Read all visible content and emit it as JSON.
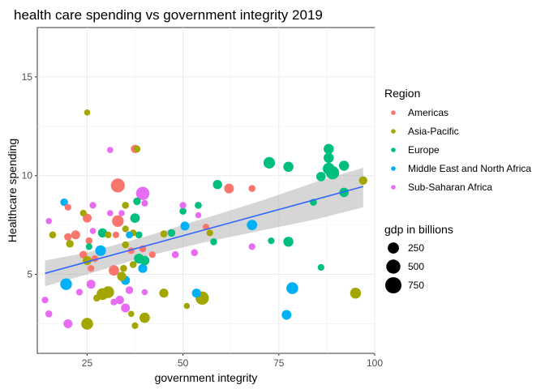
{
  "chart_data": {
    "type": "scatter",
    "title": "health care spending vs government integrity 2019",
    "xlabel": "government integrity",
    "ylabel": "Healthcare spending",
    "xlim": [
      12,
      100
    ],
    "ylim": [
      1,
      17.5
    ],
    "xticks": [
      25,
      50,
      75,
      100
    ],
    "yticks": [
      5,
      10,
      15
    ],
    "grid": true,
    "legend_position": "right",
    "color_legend": {
      "title": "Region",
      "entries": [
        {
          "name": "Americas",
          "color": "#F8766D"
        },
        {
          "name": "Asia-Pacific",
          "color": "#A3A500"
        },
        {
          "name": "Europe",
          "color": "#00BF7D"
        },
        {
          "name": "Middle East and North Africa",
          "color": "#00B0F6"
        },
        {
          "name": "Sub-Saharan Africa",
          "color": "#E76BF3"
        }
      ]
    },
    "size_legend": {
      "title": "gdp in billions",
      "entries": [
        {
          "label": "250",
          "value": 250
        },
        {
          "label": "500",
          "value": 500
        },
        {
          "label": "750",
          "value": 750
        }
      ]
    },
    "trend_line": {
      "x": [
        14,
        97
      ],
      "y": [
        5.05,
        9.45
      ]
    },
    "confidence_band": {
      "x": [
        14,
        25,
        40,
        55,
        70,
        85,
        97
      ],
      "upper": [
        5.7,
        6.1,
        6.9,
        7.8,
        8.7,
        9.7,
        10.4
      ],
      "lower": [
        4.4,
        5.0,
        5.9,
        6.6,
        7.2,
        7.8,
        8.4
      ]
    },
    "points": [
      {
        "x": 25,
        "y": 13.2,
        "region": "Asia-Pacific",
        "gdp": 20
      },
      {
        "x": 37.5,
        "y": 11.35,
        "region": "Americas",
        "gdp": 90
      },
      {
        "x": 38,
        "y": 11.35,
        "region": "Asia-Pacific",
        "gdp": 40
      },
      {
        "x": 31,
        "y": 11.3,
        "region": "Sub-Saharan Africa",
        "gdp": 20
      },
      {
        "x": 33,
        "y": 9.5,
        "region": "Americas",
        "gdp": 480
      },
      {
        "x": 39.5,
        "y": 9.1,
        "region": "Sub-Saharan Africa",
        "gdp": 430
      },
      {
        "x": 62,
        "y": 9.35,
        "region": "Americas",
        "gdp": 160
      },
      {
        "x": 68,
        "y": 9.35,
        "region": "Americas",
        "gdp": 40
      },
      {
        "x": 59,
        "y": 9.55,
        "region": "Europe",
        "gdp": 130
      },
      {
        "x": 72.5,
        "y": 10.65,
        "region": "Europe",
        "gdp": 270
      },
      {
        "x": 77.5,
        "y": 10.45,
        "region": "Europe",
        "gdp": 190
      },
      {
        "x": 86,
        "y": 9.95,
        "region": "Europe",
        "gdp": 140
      },
      {
        "x": 88,
        "y": 10.35,
        "region": "Europe",
        "gdp": 300
      },
      {
        "x": 88,
        "y": 10.9,
        "region": "Europe",
        "gdp": 190
      },
      {
        "x": 88,
        "y": 11.35,
        "region": "Europe",
        "gdp": 190
      },
      {
        "x": 89,
        "y": 10.15,
        "region": "Europe",
        "gdp": 420
      },
      {
        "x": 92,
        "y": 10.5,
        "region": "Europe",
        "gdp": 180
      },
      {
        "x": 97,
        "y": 9.75,
        "region": "Asia-Pacific",
        "gdp": 90
      },
      {
        "x": 92,
        "y": 9.15,
        "region": "Europe",
        "gdp": 140
      },
      {
        "x": 84,
        "y": 8.65,
        "region": "Europe",
        "gdp": 40
      },
      {
        "x": 77.5,
        "y": 6.65,
        "region": "Europe",
        "gdp": 180
      },
      {
        "x": 73,
        "y": 6.7,
        "region": "Europe",
        "gdp": 30
      },
      {
        "x": 68,
        "y": 7.5,
        "region": "Middle East and North Africa",
        "gdp": 200
      },
      {
        "x": 68,
        "y": 6.4,
        "region": "Sub-Saharan Africa",
        "gdp": 30
      },
      {
        "x": 86,
        "y": 5.35,
        "region": "Europe",
        "gdp": 30
      },
      {
        "x": 78.5,
        "y": 4.3,
        "region": "Middle East and North Africa",
        "gdp": 300
      },
      {
        "x": 77,
        "y": 2.95,
        "region": "Middle East and North Africa",
        "gdp": 160
      },
      {
        "x": 95,
        "y": 4.05,
        "region": "Asia-Pacific",
        "gdp": 230
      },
      {
        "x": 55,
        "y": 3.8,
        "region": "Asia-Pacific",
        "gdp": 420
      },
      {
        "x": 53.5,
        "y": 4.05,
        "region": "Middle East and North Africa",
        "gdp": 120
      },
      {
        "x": 51,
        "y": 3.4,
        "region": "Asia-Pacific",
        "gdp": 20
      },
      {
        "x": 45,
        "y": 4.05,
        "region": "Asia-Pacific",
        "gdp": 120
      },
      {
        "x": 40,
        "y": 2.8,
        "region": "Asia-Pacific",
        "gdp": 200
      },
      {
        "x": 37.5,
        "y": 2.4,
        "region": "Asia-Pacific",
        "gdp": 30
      },
      {
        "x": 25,
        "y": 2.5,
        "region": "Asia-Pacific",
        "gdp": 300
      },
      {
        "x": 20,
        "y": 2.5,
        "region": "Sub-Saharan Africa",
        "gdp": 110
      },
      {
        "x": 15,
        "y": 3.0,
        "region": "Sub-Saharan Africa",
        "gdp": 40
      },
      {
        "x": 14,
        "y": 3.7,
        "region": "Sub-Saharan Africa",
        "gdp": 30
      },
      {
        "x": 19.5,
        "y": 4.5,
        "region": "Middle East and North Africa",
        "gdp": 280
      },
      {
        "x": 23,
        "y": 4.1,
        "region": "Sub-Saharan Africa",
        "gdp": 30
      },
      {
        "x": 26,
        "y": 4.5,
        "region": "Sub-Saharan Africa",
        "gdp": 110
      },
      {
        "x": 27.5,
        "y": 3.8,
        "region": "Asia-Pacific",
        "gdp": 40
      },
      {
        "x": 29,
        "y": 4.0,
        "region": "Asia-Pacific",
        "gdp": 300
      },
      {
        "x": 30.5,
        "y": 4.1,
        "region": "Asia-Pacific",
        "gdp": 280
      },
      {
        "x": 32,
        "y": 3.6,
        "region": "Sub-Saharan Africa",
        "gdp": 30
      },
      {
        "x": 33.5,
        "y": 3.7,
        "region": "Sub-Saharan Africa",
        "gdp": 100
      },
      {
        "x": 35,
        "y": 3.3,
        "region": "Sub-Saharan Africa",
        "gdp": 110
      },
      {
        "x": 36,
        "y": 4.2,
        "region": "Sub-Saharan Africa",
        "gdp": 60
      },
      {
        "x": 36.5,
        "y": 3.0,
        "region": "Asia-Pacific",
        "gdp": 20
      },
      {
        "x": 40,
        "y": 4.1,
        "region": "Sub-Saharan Africa",
        "gdp": 20
      },
      {
        "x": 35,
        "y": 4.7,
        "region": "Middle East and North Africa",
        "gdp": 120
      },
      {
        "x": 34,
        "y": 4.9,
        "region": "Asia-Pacific",
        "gdp": 120
      },
      {
        "x": 32,
        "y": 5.2,
        "region": "Americas",
        "gdp": 200
      },
      {
        "x": 34.5,
        "y": 5.3,
        "region": "Asia-Pacific",
        "gdp": 40
      },
      {
        "x": 37,
        "y": 5.5,
        "region": "Asia-Pacific",
        "gdp": 40
      },
      {
        "x": 39.5,
        "y": 5.3,
        "region": "Middle East and North Africa",
        "gdp": 120
      },
      {
        "x": 42,
        "y": 6.0,
        "region": "Americas",
        "gdp": 30
      },
      {
        "x": 38.5,
        "y": 5.8,
        "region": "Europe",
        "gdp": 170
      },
      {
        "x": 40,
        "y": 5.7,
        "region": "Europe",
        "gdp": 150
      },
      {
        "x": 39.5,
        "y": 6.3,
        "region": "Americas",
        "gdp": 40
      },
      {
        "x": 36.5,
        "y": 6.2,
        "region": "Americas",
        "gdp": 30
      },
      {
        "x": 35,
        "y": 6.5,
        "region": "Asia-Pacific",
        "gdp": 40
      },
      {
        "x": 35,
        "y": 7.3,
        "region": "Asia-Pacific",
        "gdp": 30
      },
      {
        "x": 37,
        "y": 7.1,
        "region": "Asia-Pacific",
        "gdp": 30
      },
      {
        "x": 38.5,
        "y": 7.0,
        "region": "Europe",
        "gdp": 40
      },
      {
        "x": 33,
        "y": 7.7,
        "region": "Americas",
        "gdp": 280
      },
      {
        "x": 34,
        "y": 8.1,
        "region": "Sub-Saharan Africa",
        "gdp": 20
      },
      {
        "x": 37.5,
        "y": 7.85,
        "region": "Europe",
        "gdp": 150
      },
      {
        "x": 38,
        "y": 8.7,
        "region": "Europe",
        "gdp": 60
      },
      {
        "x": 31,
        "y": 8.1,
        "region": "Sub-Saharan Africa",
        "gdp": 20
      },
      {
        "x": 26.5,
        "y": 8.5,
        "region": "Sub-Saharan Africa",
        "gdp": 30
      },
      {
        "x": 26.5,
        "y": 7.2,
        "region": "Sub-Saharan Africa",
        "gdp": 20
      },
      {
        "x": 25,
        "y": 7.85,
        "region": "Americas",
        "gdp": 110
      },
      {
        "x": 24,
        "y": 8.1,
        "region": "Asia-Pacific",
        "gdp": 30
      },
      {
        "x": 19,
        "y": 8.65,
        "region": "Middle East and North Africa",
        "gdp": 60
      },
      {
        "x": 20,
        "y": 8.4,
        "region": "Americas",
        "gdp": 30
      },
      {
        "x": 15,
        "y": 7.7,
        "region": "Sub-Saharan Africa",
        "gdp": 20
      },
      {
        "x": 16,
        "y": 7.0,
        "region": "Asia-Pacific",
        "gdp": 40
      },
      {
        "x": 20,
        "y": 6.9,
        "region": "Americas",
        "gdp": 60
      },
      {
        "x": 20.5,
        "y": 6.55,
        "region": "Asia-Pacific",
        "gdp": 60
      },
      {
        "x": 22,
        "y": 7.0,
        "region": "Americas",
        "gdp": 110
      },
      {
        "x": 25.5,
        "y": 6.7,
        "region": "Americas",
        "gdp": 40
      },
      {
        "x": 25.5,
        "y": 6.4,
        "region": "Europe",
        "gdp": 30
      },
      {
        "x": 24,
        "y": 6.0,
        "region": "Americas",
        "gdp": 60
      },
      {
        "x": 25,
        "y": 5.7,
        "region": "Asia-Pacific",
        "gdp": 110
      },
      {
        "x": 27,
        "y": 5.8,
        "region": "Americas",
        "gdp": 40
      },
      {
        "x": 26,
        "y": 5.3,
        "region": "Americas",
        "gdp": 30
      },
      {
        "x": 28.5,
        "y": 6.2,
        "region": "Middle East and North Africa",
        "gdp": 220
      },
      {
        "x": 29,
        "y": 7.1,
        "region": "Europe",
        "gdp": 130
      },
      {
        "x": 30.5,
        "y": 7.0,
        "region": "Asia-Pacific",
        "gdp": 30
      },
      {
        "x": 32.5,
        "y": 7.0,
        "region": "Americas",
        "gdp": 30
      },
      {
        "x": 36,
        "y": 7.0,
        "region": "Middle East and North Africa",
        "gdp": 40
      },
      {
        "x": 45,
        "y": 7.05,
        "region": "Asia-Pacific",
        "gdp": 40
      },
      {
        "x": 47,
        "y": 7.1,
        "region": "Europe",
        "gdp": 60
      },
      {
        "x": 48,
        "y": 6.0,
        "region": "Sub-Saharan Africa",
        "gdp": 40
      },
      {
        "x": 53,
        "y": 6.1,
        "region": "Sub-Saharan Africa",
        "gdp": 40
      },
      {
        "x": 50.5,
        "y": 7.45,
        "region": "Middle East and North Africa",
        "gdp": 110
      },
      {
        "x": 50,
        "y": 8.2,
        "region": "Europe",
        "gdp": 40
      },
      {
        "x": 50,
        "y": 8.5,
        "region": "Sub-Saharan Africa",
        "gdp": 30
      },
      {
        "x": 54,
        "y": 8.5,
        "region": "Europe",
        "gdp": 40
      },
      {
        "x": 54,
        "y": 8.0,
        "region": "Sub-Saharan Africa",
        "gdp": 20
      },
      {
        "x": 57,
        "y": 7.1,
        "region": "Asia-Pacific",
        "gdp": 30
      },
      {
        "x": 56,
        "y": 7.4,
        "region": "Americas",
        "gdp": 30
      },
      {
        "x": 58,
        "y": 6.65,
        "region": "Europe",
        "gdp": 40
      },
      {
        "x": 40,
        "y": 8.6,
        "region": "Sub-Saharan Africa",
        "gdp": 30
      },
      {
        "x": 35,
        "y": 8.5,
        "region": "Asia-Pacific",
        "gdp": 40
      }
    ]
  }
}
